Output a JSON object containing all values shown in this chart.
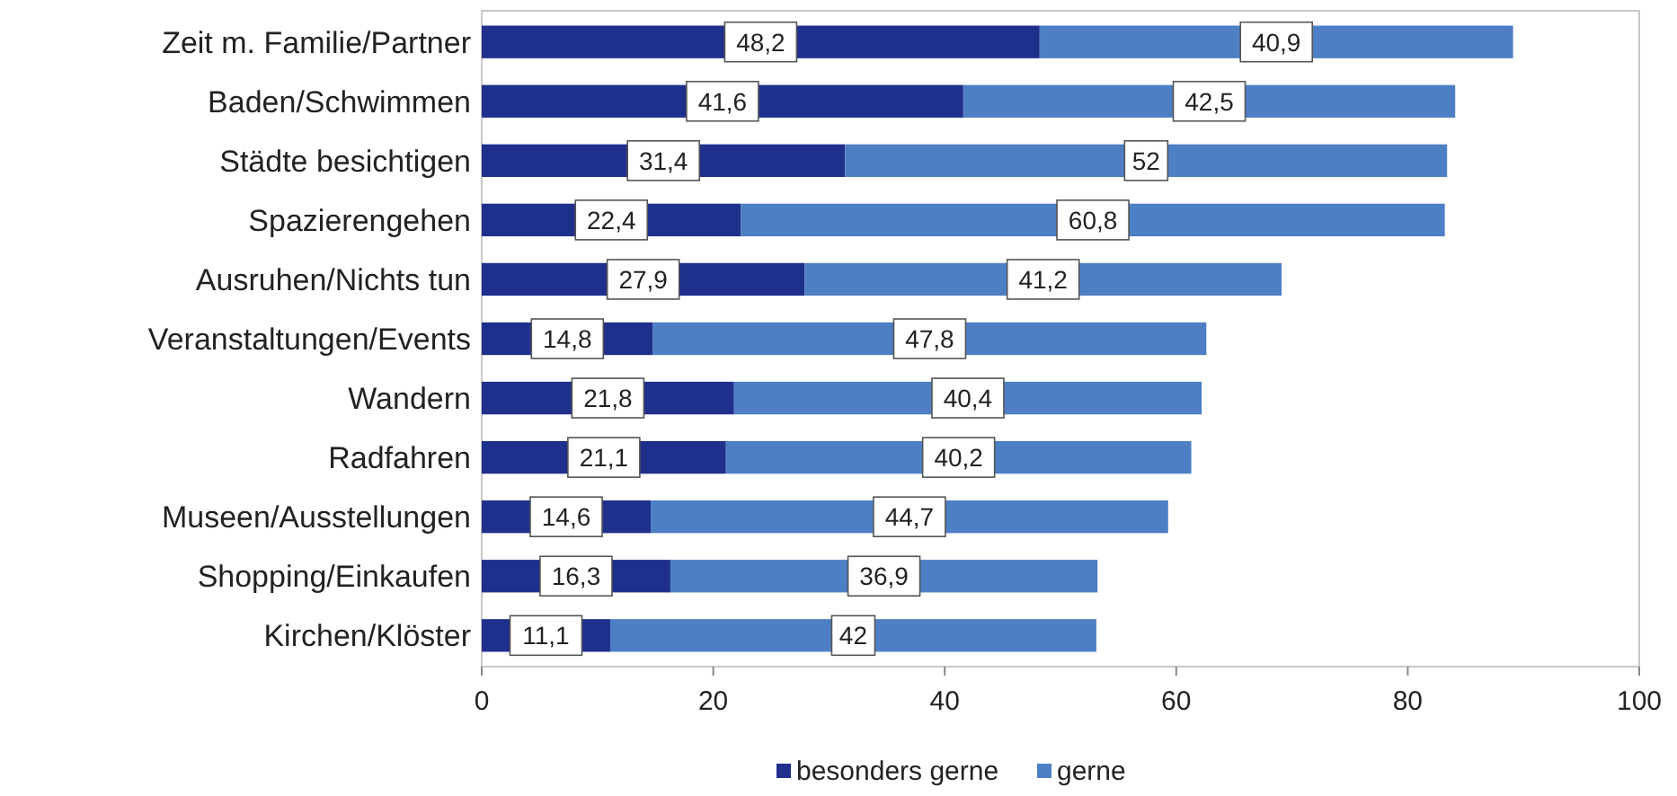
{
  "chart_data": {
    "type": "bar",
    "orientation": "horizontal",
    "stacked": true,
    "legend": "bottom",
    "grid": false,
    "categories": [
      "Zeit m. Familie/Partner",
      "Baden/Schwimmen",
      "Städte besichtigen",
      "Spazierengehen",
      "Ausruhen/Nichts tun",
      "Veranstaltungen/Events",
      "Wandern",
      "Radfahren",
      "Museen/Ausstellungen",
      "Shopping/Einkaufen",
      "Kirchen/Klöster"
    ],
    "series": [
      {
        "name": "besonders gerne",
        "color": "#1f2f8c",
        "values": [
          48.2,
          41.6,
          31.4,
          22.4,
          27.9,
          14.8,
          21.8,
          21.1,
          14.6,
          16.3,
          11.1
        ],
        "value_labels": [
          "48,2",
          "41,6",
          "31,4",
          "22,4",
          "27,9",
          "14,8",
          "21,8",
          "21,1",
          "14,6",
          "16,3",
          "11,1"
        ]
      },
      {
        "name": "gerne",
        "color": "#4d7fc4",
        "values": [
          40.9,
          42.5,
          52,
          60.8,
          41.2,
          47.8,
          40.4,
          40.2,
          44.7,
          36.9,
          42
        ],
        "value_labels": [
          "40,9",
          "42,5",
          "52",
          "60,8",
          "41,2",
          "47,8",
          "40,4",
          "40,2",
          "44,7",
          "36,9",
          "42"
        ]
      }
    ],
    "xlim": [
      0,
      100
    ],
    "xticks": [
      0,
      20,
      40,
      60,
      80,
      100
    ]
  }
}
